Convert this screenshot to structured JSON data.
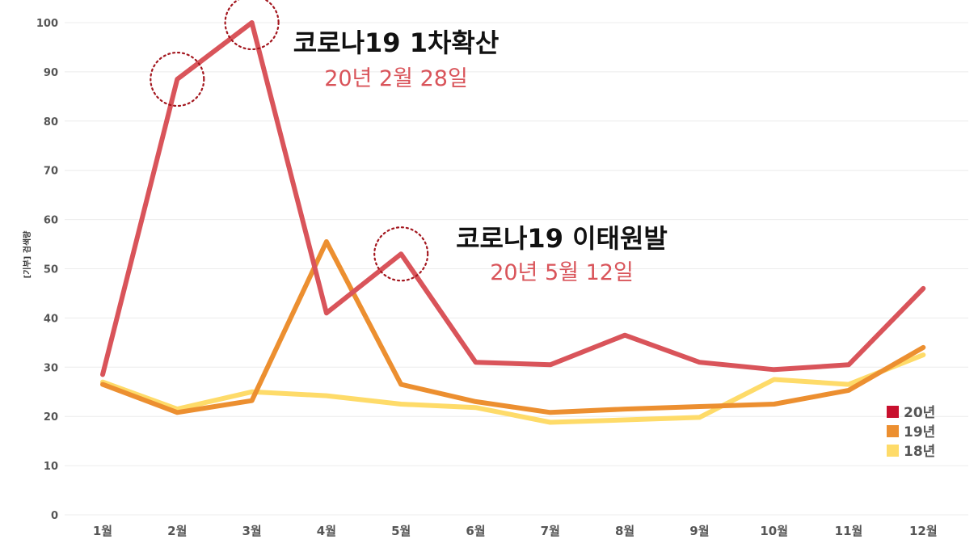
{
  "chart_data": {
    "type": "line",
    "ylabel": "[기부] 검색량",
    "xlabel": "",
    "ylim": [
      0,
      100
    ],
    "yticks": [
      0,
      10,
      20,
      30,
      40,
      50,
      60,
      70,
      80,
      90,
      100
    ],
    "categories": [
      "1월",
      "2월",
      "3월",
      "4월",
      "5월",
      "6월",
      "7월",
      "8월",
      "9월",
      "10월",
      "11월",
      "12월"
    ],
    "series": [
      {
        "name": "20년",
        "color": "#d9545a",
        "legend_color": "#c8102e",
        "values": [
          28.5,
          88.5,
          100,
          41,
          53,
          31,
          30.5,
          36.5,
          31,
          29.5,
          30.5,
          46
        ]
      },
      {
        "name": "19년",
        "color": "#ec8f30",
        "legend_color": "#ec8f30",
        "values": [
          26.5,
          20.8,
          23.2,
          55.5,
          26.5,
          23,
          20.8,
          21.5,
          22,
          22.5,
          25.3,
          34
        ]
      },
      {
        "name": "18년",
        "color": "#fedb69",
        "legend_color": "#fedb69",
        "values": [
          27,
          21.5,
          25,
          24.2,
          22.5,
          21.8,
          18.8,
          19.3,
          19.8,
          27.5,
          26.5,
          32.5
        ]
      }
    ],
    "grid": true,
    "legend_position": "bottom-right",
    "annotations": [
      {
        "title": "코로나19 1차확산",
        "subtitle": "20년 2월 28일"
      },
      {
        "title": "코로나19 이태원발",
        "subtitle": "20년 5월 12일"
      }
    ],
    "highlight_color": "#a3161e"
  }
}
